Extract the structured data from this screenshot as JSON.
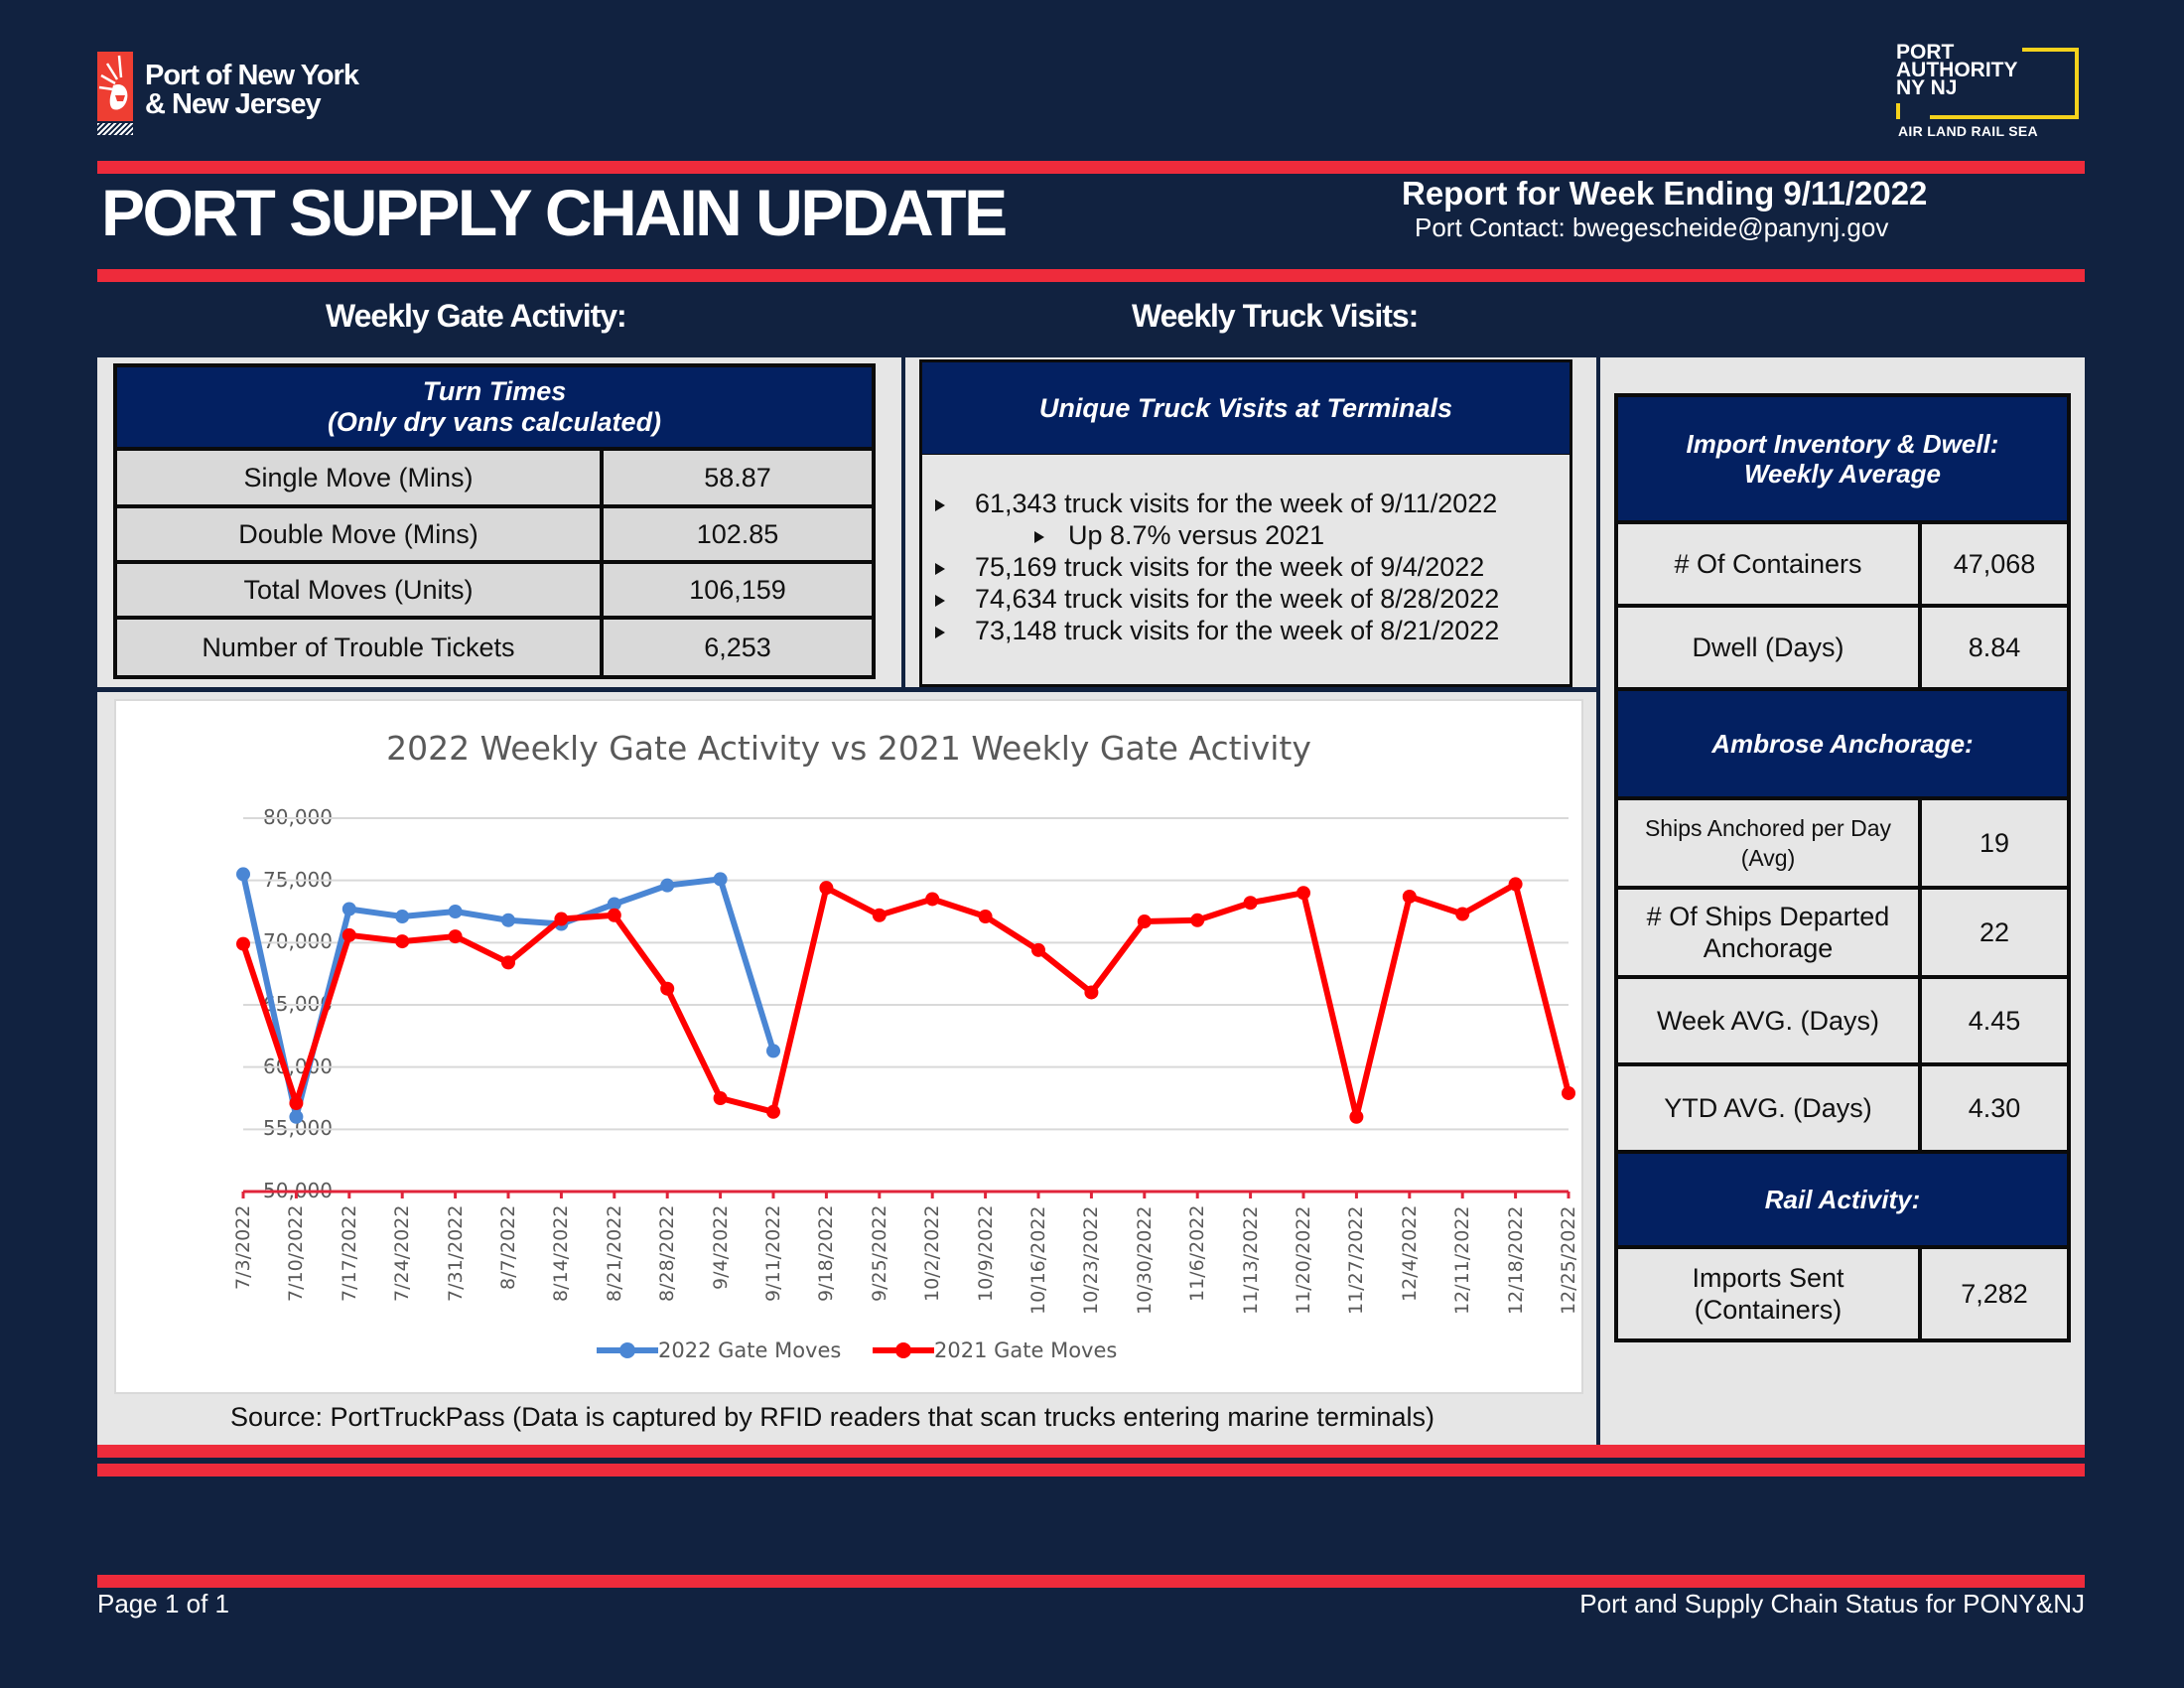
{
  "header": {
    "port_logo_text_line1": "Port of New York",
    "port_logo_text_line2": "& New Jersey",
    "pa_logo_line1": "PORT",
    "pa_logo_line2": "AUTHORITY",
    "pa_logo_line3": "NY NJ",
    "pa_logo_tagline": "AIR LAND RAIL SEA",
    "title": "PORT SUPPLY CHAIN UPDATE",
    "report_week": "Report for Week Ending 9/11/2022",
    "contact": "Port Contact: bwegescheide@panynj.gov"
  },
  "sections": {
    "gate_activity_heading": "Weekly Gate Activity:",
    "truck_visits_heading": "Weekly Truck Visits:"
  },
  "turn_times": {
    "title_line1": "Turn Times",
    "title_line2": "(Only dry vans calculated)",
    "rows": [
      {
        "label": "Single Move (Mins)",
        "value": "58.87"
      },
      {
        "label": "Double Move (Mins)",
        "value": "102.85"
      },
      {
        "label": "Total Moves (Units)",
        "value": "106,159"
      },
      {
        "label": "Number of Trouble Tickets",
        "value": "6,253"
      }
    ]
  },
  "truck_visits": {
    "title": "Unique Truck Visits at Terminals",
    "items": [
      "61,343 truck visits for the week of 9/11/2022",
      "Up 8.7% versus 2021",
      "75,169 truck visits for the week of 9/4/2022",
      "74,634 truck visits for the week of 8/28/2022",
      "73,148 truck visits for the week of 8/21/2022"
    ]
  },
  "import_inventory": {
    "title_line1": "Import Inventory & Dwell:",
    "title_line2": "Weekly Average",
    "rows": [
      {
        "label": "# Of Containers",
        "value": "47,068"
      },
      {
        "label": "Dwell (Days)",
        "value": "8.84"
      }
    ]
  },
  "ambrose": {
    "title": "Ambrose Anchorage:",
    "rows": [
      {
        "label_line1": "Ships Anchored per Day",
        "label_line2": "(Avg)",
        "value": "19"
      },
      {
        "label_line1": "# Of Ships Departed",
        "label_line2": "Anchorage",
        "value": "22"
      },
      {
        "label_line1": "Week AVG. (Days)",
        "label_line2": "",
        "value": "4.45"
      },
      {
        "label_line1": "YTD AVG. (Days)",
        "label_line2": "",
        "value": "4.30"
      }
    ]
  },
  "rail": {
    "title": "Rail Activity:",
    "rows": [
      {
        "label_line1": "Imports Sent",
        "label_line2": "(Containers)",
        "value": "7,282"
      }
    ]
  },
  "chart_source": "Source: PortTruckPass (Data is captured by RFID readers that scan trucks entering marine terminals)",
  "footer": {
    "page": "Page 1 of 1",
    "right": "Port and Supply Chain Status for PONY&NJ"
  },
  "colors": {
    "navy_bg": "#112240",
    "header_navy": "#032061",
    "red_bar": "#ee2b3b",
    "series_2022": "#4a86d4",
    "series_2021": "#ff0000",
    "pa_yellow": "#f5d21c"
  },
  "chart_data": {
    "type": "line",
    "title": "2022 Weekly Gate Activity vs 2021 Weekly Gate Activity",
    "xlabel": "",
    "ylabel": "",
    "ylim": [
      50000,
      80000
    ],
    "yticks": [
      "50,000",
      "55,000",
      "60,000",
      "65,000",
      "70,000",
      "75,000",
      "80,000"
    ],
    "grid": true,
    "legend_position": "bottom",
    "categories": [
      "7/3/2022",
      "7/10/2022",
      "7/17/2022",
      "7/24/2022",
      "7/31/2022",
      "8/7/2022",
      "8/14/2022",
      "8/21/2022",
      "8/28/2022",
      "9/4/2022",
      "9/11/2022",
      "9/18/2022",
      "9/25/2022",
      "10/2/2022",
      "10/9/2022",
      "10/16/2022",
      "10/23/2022",
      "10/30/2022",
      "11/6/2022",
      "11/13/2022",
      "11/20/2022",
      "11/27/2022",
      "12/4/2022",
      "12/11/2022",
      "12/18/2022",
      "12/25/2022"
    ],
    "series": [
      {
        "name": "2022 Gate Moves",
        "color": "#4a86d4",
        "values": [
          75500,
          56000,
          72700,
          72100,
          72500,
          71800,
          71500,
          73100,
          74600,
          75100,
          61300,
          null,
          null,
          null,
          null,
          null,
          null,
          null,
          null,
          null,
          null,
          null,
          null,
          null,
          null,
          null
        ]
      },
      {
        "name": "2021 Gate Moves",
        "color": "#ff0000",
        "values": [
          69900,
          57100,
          70600,
          70100,
          70500,
          68400,
          71900,
          72200,
          66300,
          57500,
          56400,
          74400,
          72200,
          73500,
          72100,
          69400,
          66000,
          71700,
          71800,
          73200,
          74000,
          56000,
          73700,
          72300,
          74700,
          57900
        ]
      }
    ]
  }
}
